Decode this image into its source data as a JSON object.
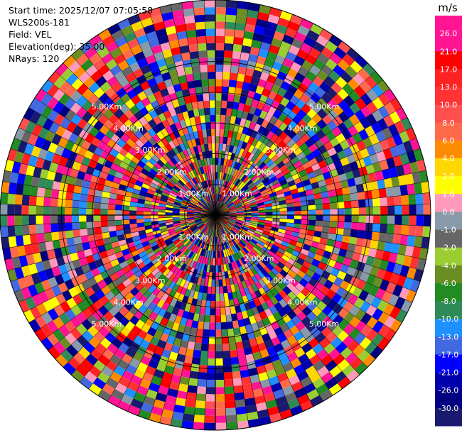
{
  "header": {
    "start_time": "Start time: 2025/12/07 07:05:58",
    "instrument": "WLS200s-181",
    "field": "Field: VEL",
    "elevation": "Elevation(deg): 35.00",
    "nrays": "NRays: 120"
  },
  "chart_data": {
    "type": "heatmap",
    "projection": "polar-ppi",
    "field": "VEL",
    "units": "m/s",
    "nrays": 120,
    "elevation_deg": 35.0,
    "range_rings_km": [
      1,
      2,
      3,
      4,
      5
    ],
    "range_ring_labels": [
      "1.00Km",
      "2.00Km",
      "3.00Km",
      "4.00Km",
      "5.00Km"
    ],
    "max_range_km": 7.0,
    "colorbar": {
      "label": "m/s",
      "ticks": [
        "26.0",
        "21.0",
        "17.0",
        "13.0",
        "10.0",
        "8.0",
        "6.0",
        "4.0",
        "2.0",
        "1.0",
        "0.0",
        "-1.0",
        "-2.0",
        "-4.0",
        "-6.0",
        "-8.0",
        "-10.0",
        "-13.0",
        "-17.0",
        "-21.0",
        "-26.0",
        "-30.0"
      ],
      "colors": [
        "#ff1493",
        "#ff1493",
        "#ff0000",
        "#ff2222",
        "#ff3333",
        "#ff5050",
        "#ff6a4a",
        "#ff8c00",
        "#ffd700",
        "#ffff00",
        "#ff99bb",
        "#8899aa",
        "#666666",
        "#9acd32",
        "#6b8e23",
        "#228b22",
        "#2e8b57",
        "#1e90ff",
        "#4169e1",
        "#0000ff",
        "#0000aa",
        "#000080",
        "#191970"
      ]
    }
  }
}
